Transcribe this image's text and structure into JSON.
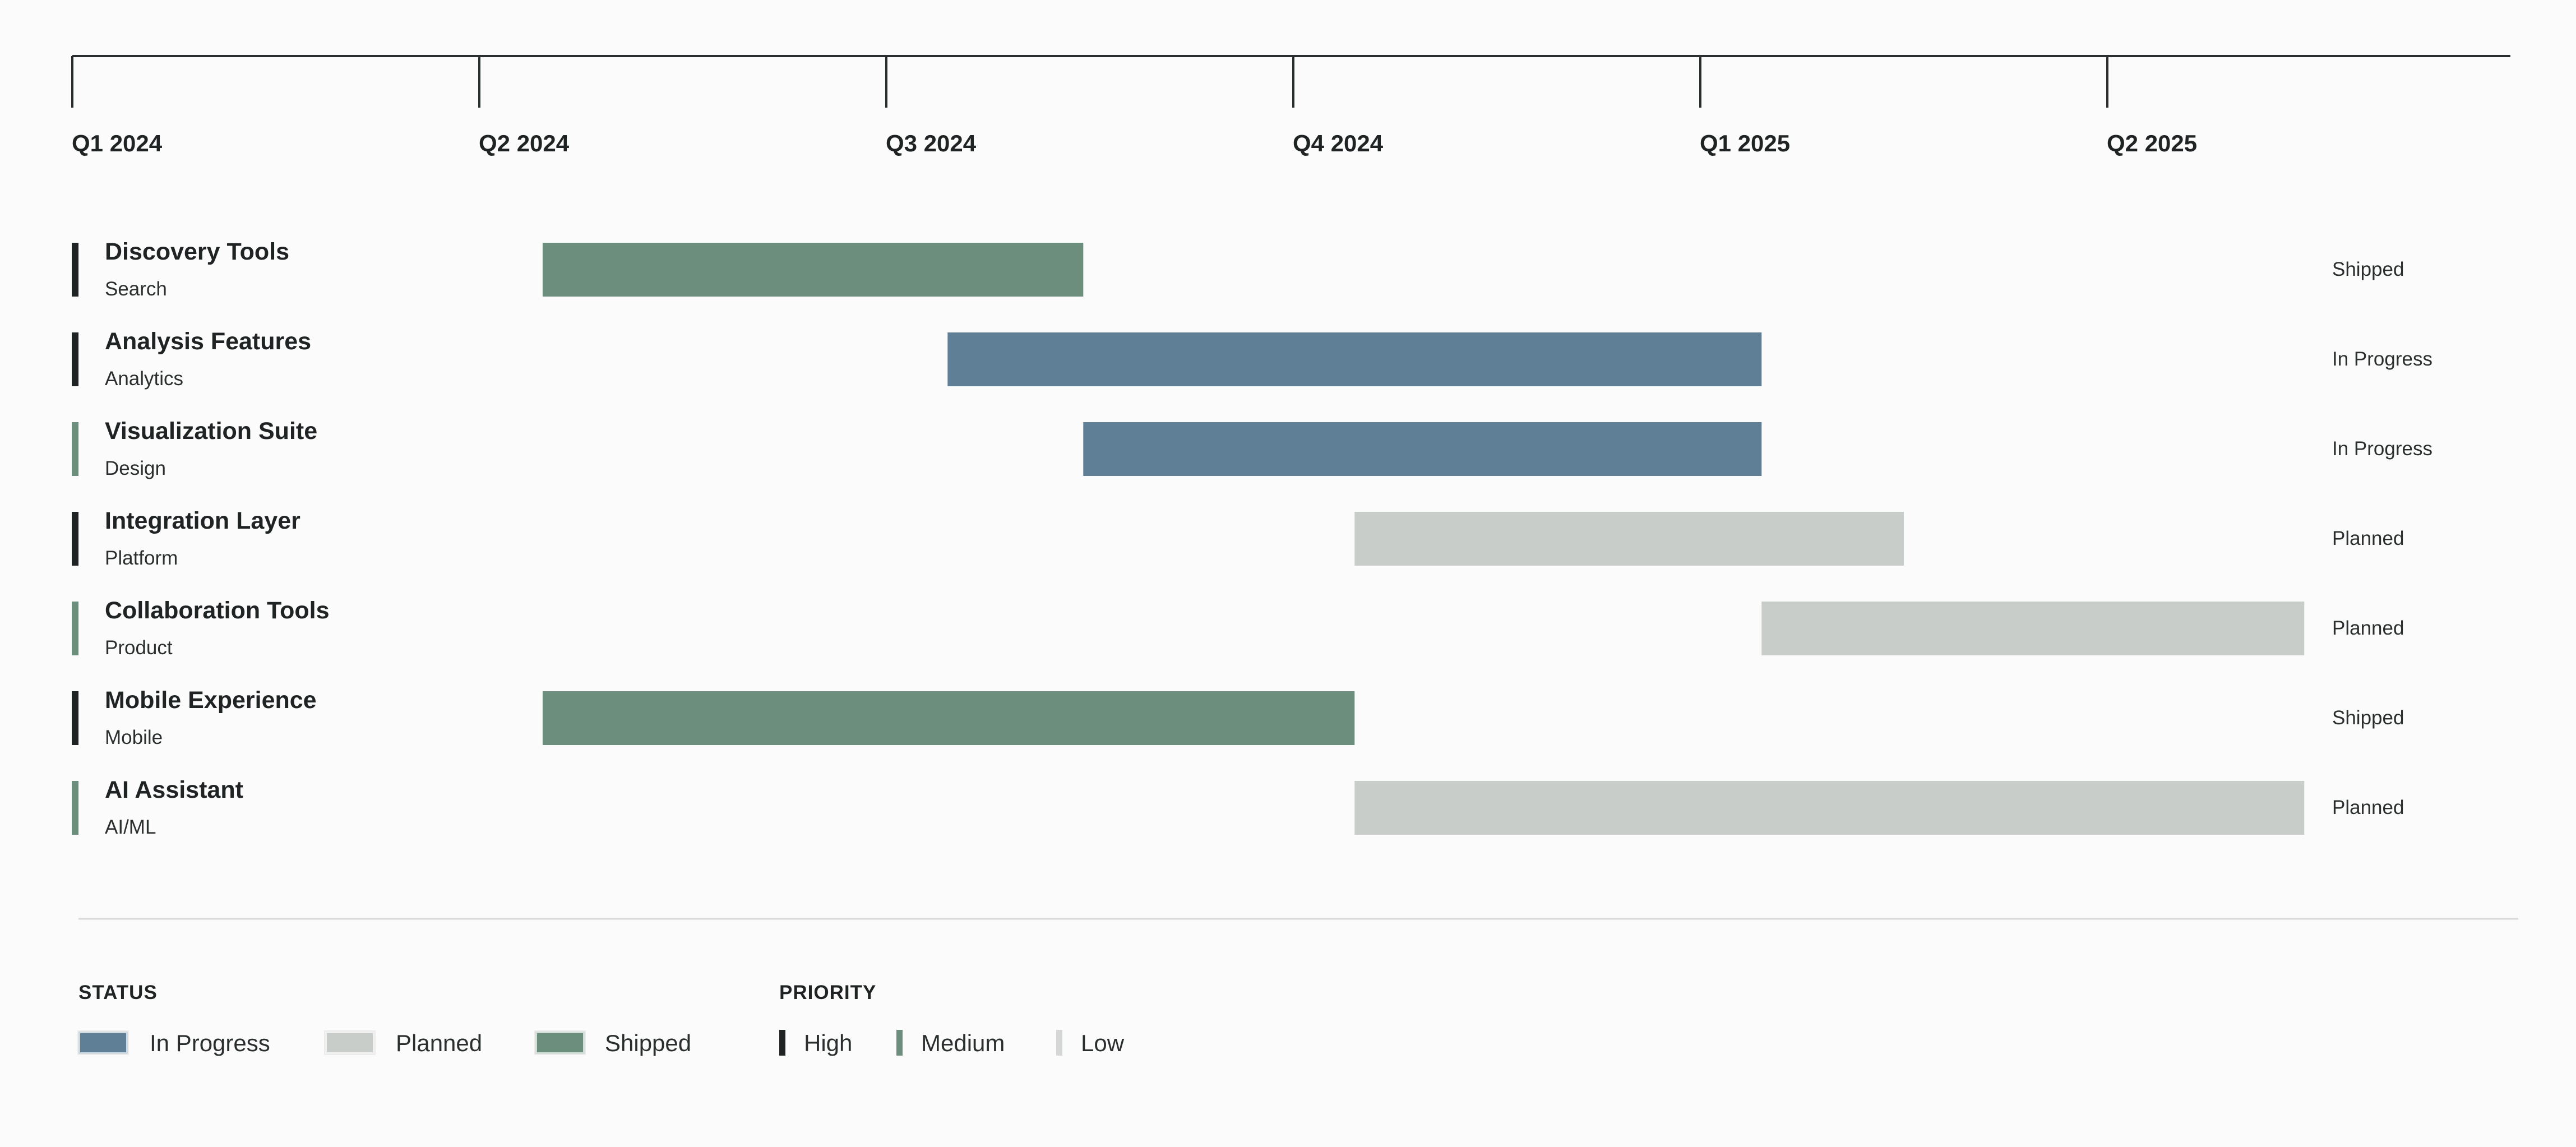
{
  "chart_data": {
    "type": "gantt",
    "timeline": {
      "quarters": [
        "Q1 2024",
        "Q2 2024",
        "Q3 2024",
        "Q4 2024",
        "Q1 2025",
        "Q2 2025"
      ],
      "start": "2024-01-01",
      "end": "2025-06-30"
    },
    "tasks": [
      {
        "name": "Discovery Tools",
        "category": "Search",
        "start": "2024-04-15",
        "end": "2024-08-15",
        "status": "Shipped",
        "priority": "High"
      },
      {
        "name": "Analysis Features",
        "category": "Analytics",
        "start": "2024-07-15",
        "end": "2025-01-15",
        "status": "In Progress",
        "priority": "High"
      },
      {
        "name": "Visualization Suite",
        "category": "Design",
        "start": "2024-08-15",
        "end": "2025-01-15",
        "status": "In Progress",
        "priority": "Medium"
      },
      {
        "name": "Integration Layer",
        "category": "Platform",
        "start": "2024-10-15",
        "end": "2025-02-15",
        "status": "Planned",
        "priority": "High"
      },
      {
        "name": "Collaboration Tools",
        "category": "Product",
        "start": "2025-01-15",
        "end": "2025-05-15",
        "status": "Planned",
        "priority": "Medium"
      },
      {
        "name": "Mobile Experience",
        "category": "Mobile",
        "start": "2024-04-15",
        "end": "2024-10-15",
        "status": "Shipped",
        "priority": "High"
      },
      {
        "name": "AI Assistant",
        "category": "AI/ML",
        "start": "2024-10-15",
        "end": "2025-05-15",
        "status": "Planned",
        "priority": "Medium"
      }
    ],
    "status_colors": {
      "In Progress": "#5e7f96",
      "Planned": "#c8cdc9",
      "Shipped": "#6c8f7d"
    },
    "priority_colors": {
      "High": "#1f2323",
      "Medium": "#6c8f7d",
      "Low": "#d4d7d5"
    }
  },
  "legend": {
    "status_title": "STATUS",
    "status_items": [
      "In Progress",
      "Planned",
      "Shipped"
    ],
    "priority_title": "PRIORITY",
    "priority_items": [
      "High",
      "Medium",
      "Low"
    ]
  }
}
